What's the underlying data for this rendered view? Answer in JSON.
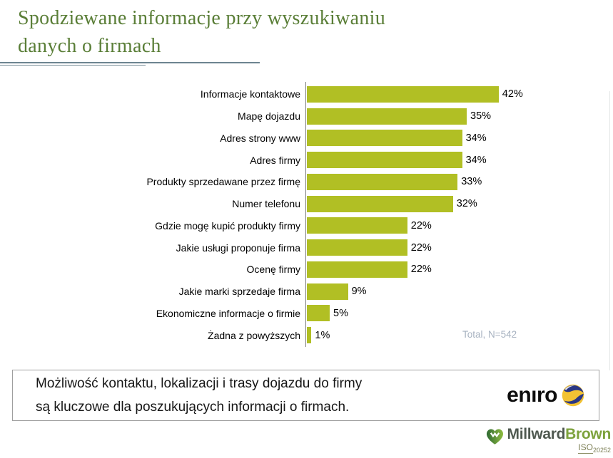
{
  "title": {
    "line1": "Spodziewane informacje przy wyszukiwaniu",
    "line2": "danych o firmach"
  },
  "chart_data": {
    "type": "bar",
    "orientation": "horizontal",
    "title": "Spodziewane informacje przy wyszukiwaniu danych o firmach",
    "categories": [
      "Informacje kontaktowe",
      "Mapę dojazdu",
      "Adres strony www",
      "Adres firmy",
      "Produkty sprzedawane przez firmę",
      "Numer telefonu",
      "Gdzie mogę kupić produkty firmy",
      "Jakie usługi proponuje firma",
      "Ocenę firmy",
      "Jakie marki sprzedaje firma",
      "Ekonomiczne informacje o firmie",
      "Żadna z powyższych"
    ],
    "values": [
      42,
      35,
      34,
      34,
      33,
      32,
      22,
      22,
      22,
      9,
      5,
      1
    ],
    "unit": "%",
    "note": "Total, N=542",
    "xlim": [
      0,
      45
    ],
    "grid": false,
    "value_labels": true,
    "bar_color": "#b1bf24",
    "legend": "none"
  },
  "summary": {
    "line1": "Możliwość kontaktu, lokalizacji i trasy dojazdu do firmy",
    "line2": "są kluczowe dla poszukujących informacji o firmach."
  },
  "logos": {
    "eniro": {
      "text": "enıro"
    },
    "millwardbrown": {
      "millward": "Millward",
      "brown": "Brown",
      "iso": "ISO",
      "iso_number": "20252"
    }
  },
  "colors": {
    "title_green": "#5a7e37",
    "bar_olive": "#b1bf24",
    "note_gray": "#a7b2c0",
    "brown_green": "#7da23d",
    "eniro_navy": "#2b3784",
    "eniro_yellow": "#f2c233"
  }
}
